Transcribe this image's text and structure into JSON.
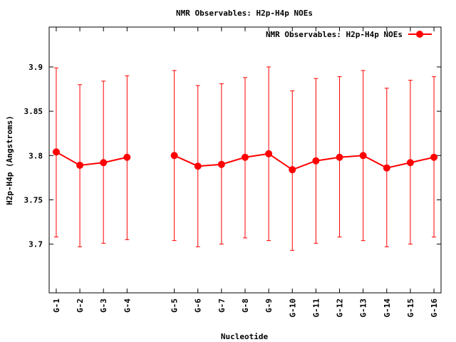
{
  "chart_data": {
    "type": "line",
    "title": "NMR Observables: H2p-H4p NOEs",
    "xlabel": "Nucleotide",
    "ylabel": "H2p-H4p (Angstroms)",
    "ylim": [
      3.645,
      3.945
    ],
    "yticks": [
      3.7,
      3.75,
      3.8,
      3.85,
      3.9
    ],
    "ytick_labels": [
      "3.7",
      "3.75",
      "3.8",
      "3.85",
      "3.9"
    ],
    "grid": false,
    "legend_position": "top-right",
    "series": [
      {
        "name": "NMR Observables: H2p-H4p NOEs",
        "color": "#ff0000",
        "segments": [
          {
            "x": [
              1,
              2,
              3,
              4
            ],
            "labels": [
              "G-1",
              "G-2",
              "G-3",
              "G-4"
            ],
            "y": [
              3.804,
              3.789,
              3.792,
              3.798
            ],
            "err_low": [
              3.708,
              3.697,
              3.701,
              3.705
            ],
            "err_high": [
              3.899,
              3.88,
              3.884,
              3.89
            ]
          },
          {
            "x": [
              6,
              7,
              8,
              9,
              10,
              11,
              12,
              13,
              14,
              15,
              16,
              17
            ],
            "labels": [
              "G-5",
              "G-6",
              "G-7",
              "G-8",
              "G-9",
              "G-10",
              "G-11",
              "G-12",
              "G-13",
              "G-14",
              "G-15",
              "G-16"
            ],
            "y": [
              3.8,
              3.788,
              3.79,
              3.798,
              3.802,
              3.784,
              3.794,
              3.798,
              3.8,
              3.786,
              3.792,
              3.798
            ],
            "err_low": [
              3.704,
              3.697,
              3.7,
              3.707,
              3.704,
              3.693,
              3.701,
              3.708,
              3.704,
              3.697,
              3.7,
              3.708
            ],
            "err_high": [
              3.896,
              3.879,
              3.881,
              3.888,
              3.9,
              3.873,
              3.887,
              3.889,
              3.896,
              3.876,
              3.885,
              3.889
            ]
          }
        ]
      }
    ]
  }
}
